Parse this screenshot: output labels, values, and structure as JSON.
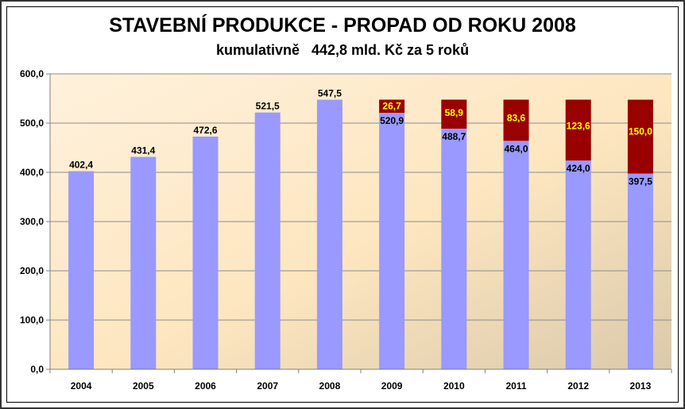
{
  "chart_data": {
    "type": "bar",
    "stacked": true,
    "title": "STAVEBNÍ PRODUKCE - PROPAD OD ROKU 2008",
    "subtitle": "kumulativně   442,8 mld. Kč za 5 roků",
    "categories": [
      "2004",
      "2005",
      "2006",
      "2007",
      "2008",
      "2009",
      "2010",
      "2011",
      "2012",
      "2013"
    ],
    "series": [
      {
        "values": [
          402.4,
          431.4,
          472.6,
          521.5,
          547.5,
          520.9,
          488.7,
          464.0,
          424.0,
          397.5
        ],
        "labels": [
          "402,4",
          "431,4",
          "472,6",
          "521,5",
          "547,5",
          "520,9",
          "488,7",
          "464,0",
          "424,0",
          "397,5"
        ],
        "color": "#9999ff",
        "label_color": "#000000"
      },
      {
        "values": [
          null,
          null,
          null,
          null,
          null,
          26.7,
          58.9,
          83.6,
          123.6,
          150.0
        ],
        "labels": [
          "",
          "",
          "",
          "",
          "",
          "26,7",
          "58,9",
          "83,6",
          "123,6",
          "150,0"
        ],
        "color": "#990000",
        "label_color": "#ffff00"
      }
    ],
    "ylim": [
      0,
      600
    ],
    "yticks": [
      0,
      100,
      200,
      300,
      400,
      500,
      600
    ],
    "ytick_labels": [
      "0,0",
      "100,0",
      "200,0",
      "300,0",
      "400,0",
      "500,0",
      "600,0"
    ],
    "grid": true,
    "legend": "none",
    "background_gradient": [
      "#fff1dc",
      "#fde6bf",
      "#dac9ab"
    ]
  }
}
